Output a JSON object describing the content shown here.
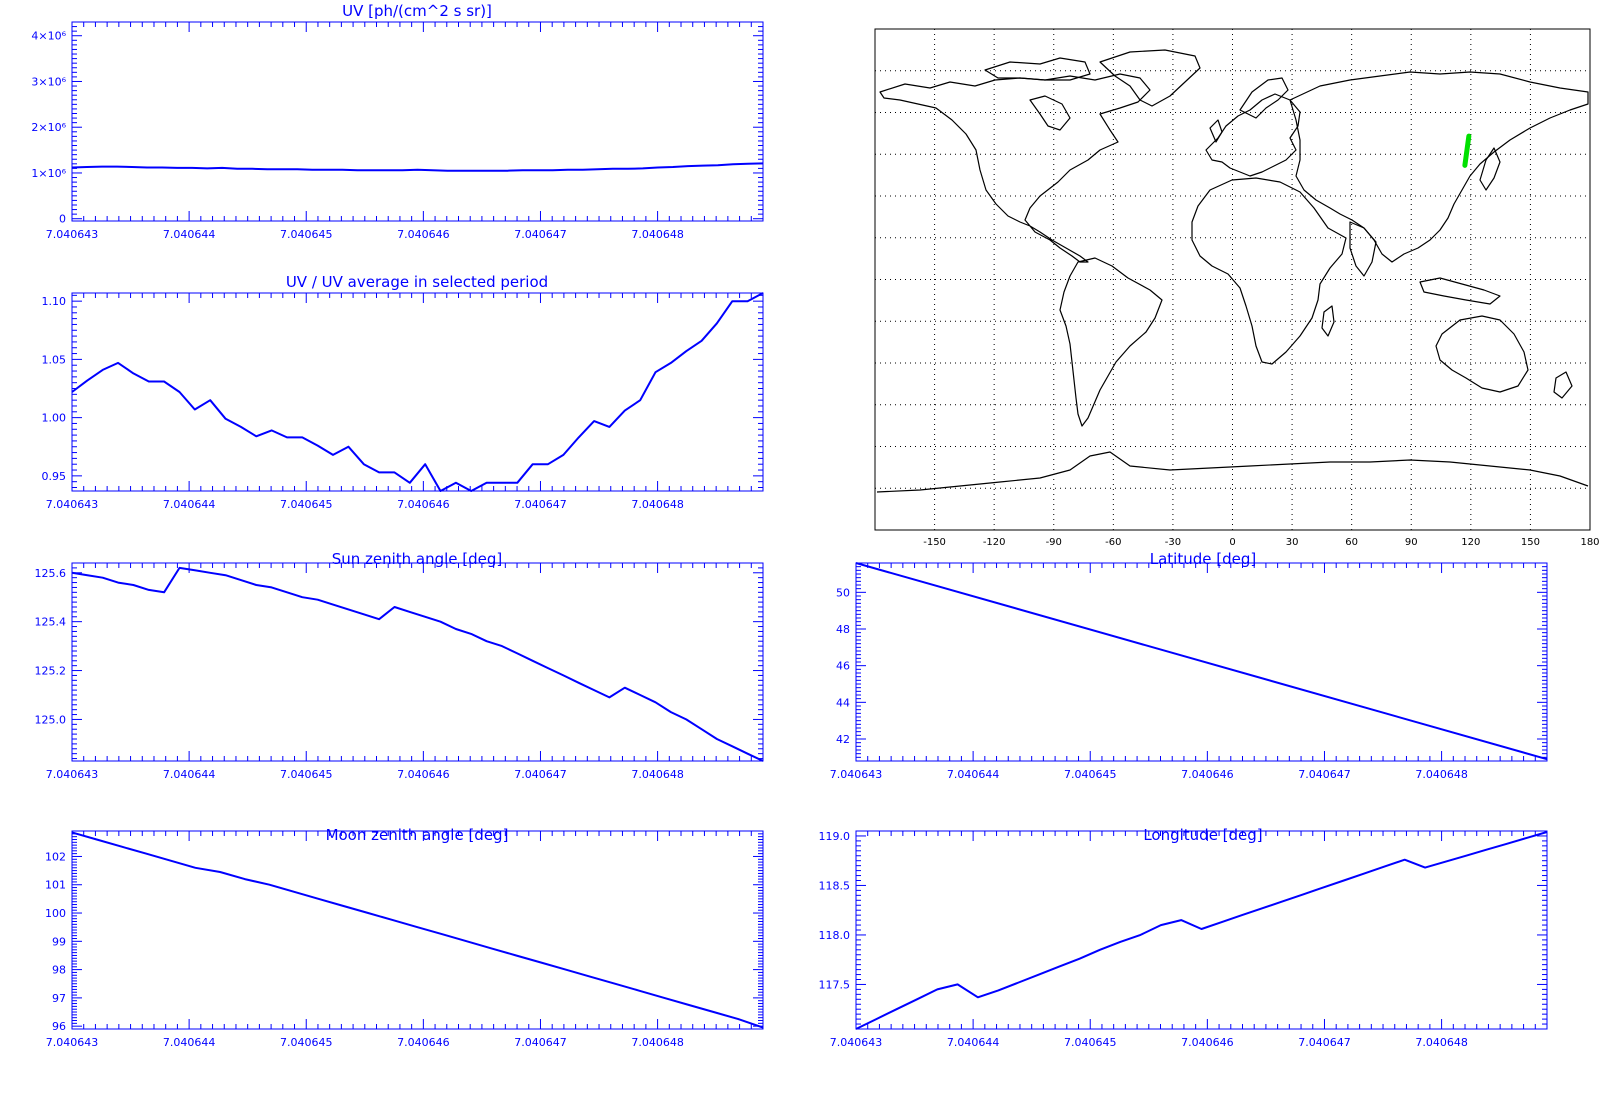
{
  "colors": {
    "axis": "#0000ff",
    "line": "#0000ff",
    "map": "#000000",
    "track": "#00e000"
  },
  "x_ticks": [
    "7.040643",
    "7.040644",
    "7.040645",
    "7.040646",
    "7.040647",
    "7.040648"
  ],
  "chart_data": [
    {
      "id": "uv",
      "type": "line",
      "title": "UV [ph/(cm^2 s sr)]",
      "xlim": [
        7.040643,
        7.0406489
      ],
      "ylim": [
        -0.05,
        4.3
      ],
      "yticks": [
        0,
        1,
        2,
        3,
        4
      ],
      "ytick_labels": [
        "0",
        "1×10⁶",
        "2×10⁶",
        "3×10⁶",
        "4×10⁶"
      ],
      "y": [
        1.12,
        1.13,
        1.14,
        1.14,
        1.13,
        1.12,
        1.12,
        1.11,
        1.11,
        1.1,
        1.11,
        1.09,
        1.09,
        1.08,
        1.08,
        1.08,
        1.07,
        1.07,
        1.07,
        1.06,
        1.06,
        1.06,
        1.06,
        1.07,
        1.06,
        1.05,
        1.05,
        1.05,
        1.05,
        1.05,
        1.06,
        1.06,
        1.06,
        1.07,
        1.07,
        1.08,
        1.09,
        1.09,
        1.1,
        1.12,
        1.13,
        1.15,
        1.16,
        1.17,
        1.19,
        1.2,
        1.21
      ]
    },
    {
      "id": "ratio",
      "type": "line",
      "title": "UV / UV average in selected period",
      "xlim": [
        7.040643,
        7.0406489
      ],
      "ylim": [
        0.937,
        1.107
      ],
      "yticks": [
        0.95,
        1.0,
        1.05,
        1.1
      ],
      "ytick_labels": [
        "0.95",
        "1.00",
        "1.05",
        "1.10"
      ],
      "y": [
        1.022,
        1.032,
        1.041,
        1.047,
        1.038,
        1.031,
        1.031,
        1.022,
        1.007,
        1.015,
        0.999,
        0.992,
        0.984,
        0.989,
        0.983,
        0.983,
        0.976,
        0.968,
        0.975,
        0.96,
        0.953,
        0.953,
        0.944,
        0.96,
        0.937,
        0.944,
        0.937,
        0.944,
        0.944,
        0.944,
        0.96,
        0.96,
        0.968,
        0.983,
        0.997,
        0.992,
        1.006,
        1.015,
        1.039,
        1.047,
        1.057,
        1.066,
        1.081,
        1.1,
        1.1,
        1.107
      ]
    },
    {
      "id": "sza",
      "type": "line",
      "title": "Sun zenith angle [deg]",
      "xlim": [
        7.040643,
        7.0406489
      ],
      "ylim": [
        124.83,
        125.64
      ],
      "yticks": [
        125.0,
        125.2,
        125.4,
        125.6
      ],
      "ytick_labels": [
        "125.0",
        "125.2",
        "125.4",
        "125.6"
      ],
      "y": [
        125.6,
        125.59,
        125.58,
        125.56,
        125.55,
        125.53,
        125.52,
        125.62,
        125.61,
        125.6,
        125.59,
        125.57,
        125.55,
        125.54,
        125.52,
        125.5,
        125.49,
        125.47,
        125.45,
        125.43,
        125.41,
        125.46,
        125.44,
        125.42,
        125.4,
        125.37,
        125.35,
        125.32,
        125.3,
        125.27,
        125.24,
        125.21,
        125.18,
        125.15,
        125.12,
        125.09,
        125.13,
        125.1,
        125.07,
        125.03,
        125.0,
        124.96,
        124.92,
        124.89,
        124.86,
        124.83
      ]
    },
    {
      "id": "moon",
      "type": "line",
      "title": "Moon zenith angle [deg]",
      "xlim": [
        7.040643,
        7.0406489
      ],
      "ylim": [
        95.9,
        102.9
      ],
      "yticks": [
        96,
        97,
        98,
        99,
        100,
        101,
        102
      ],
      "ytick_labels": [
        "96",
        "97",
        "98",
        "99",
        "100",
        "101",
        "102"
      ],
      "y": [
        102.85,
        102.6,
        102.35,
        102.1,
        101.85,
        101.6,
        101.45,
        101.2,
        101.0,
        100.75,
        100.5,
        100.25,
        100.0,
        99.75,
        99.5,
        99.25,
        99.0,
        98.75,
        98.5,
        98.25,
        98.0,
        97.75,
        97.5,
        97.25,
        97.0,
        96.75,
        96.5,
        96.25,
        95.95
      ]
    },
    {
      "id": "lat",
      "type": "line",
      "title": "Latitude [deg]",
      "xlim": [
        7.040643,
        7.0406489
      ],
      "ylim": [
        40.8,
        51.6
      ],
      "yticks": [
        42,
        44,
        46,
        48,
        50
      ],
      "ytick_labels": [
        "42",
        "44",
        "46",
        "48",
        "50"
      ],
      "y": [
        51.6,
        40.9
      ]
    },
    {
      "id": "lon",
      "type": "line",
      "title": "Longitude [deg]",
      "xlim": [
        7.040643,
        7.0406489
      ],
      "ylim": [
        117.05,
        119.05
      ],
      "yticks": [
        117.5,
        118.0,
        118.5,
        119.0
      ],
      "ytick_labels": [
        "117.5",
        "118.0",
        "118.5",
        "119.0"
      ],
      "y": [
        117.05,
        117.15,
        117.25,
        117.35,
        117.45,
        117.5,
        117.37,
        117.44,
        117.52,
        117.6,
        117.68,
        117.76,
        117.85,
        117.93,
        118.0,
        118.1,
        118.15,
        118.06,
        118.13,
        118.2,
        118.27,
        118.34,
        118.41,
        118.48,
        118.55,
        118.62,
        118.69,
        118.76,
        118.68,
        118.74,
        118.8,
        118.86,
        118.92,
        118.98,
        119.04
      ]
    }
  ],
  "map": {
    "xticks": [
      "-150",
      "-120",
      "-90",
      "-60",
      "-30",
      "0",
      "30",
      "60",
      "90",
      "120",
      "150",
      "180"
    ],
    "track": {
      "lon": [
        119.0,
        117.0
      ],
      "lat": [
        51.5,
        41.0
      ]
    }
  }
}
